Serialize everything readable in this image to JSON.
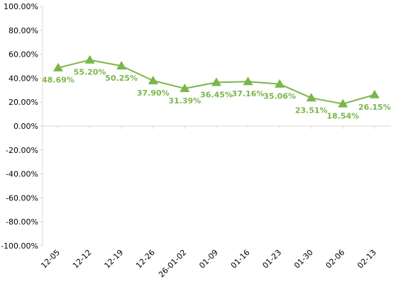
{
  "chart_data": {
    "type": "line",
    "categories": [
      "12-05",
      "12-12",
      "12-19",
      "12-26",
      "26-01-02",
      "01-09",
      "01-16",
      "01-23",
      "01-30",
      "02-06",
      "02-13"
    ],
    "series": [
      {
        "values": [
          48.69,
          55.2,
          50.25,
          37.9,
          31.39,
          36.45,
          37.16,
          35.06,
          23.51,
          18.54,
          26.15
        ],
        "labels": [
          "48.69%",
          "55.20%",
          "50.25%",
          "37.90%",
          "31.39%",
          "36.45%",
          "37.16%",
          "35.06%",
          "23.51%",
          "18.54%",
          "26.15%"
        ],
        "color": "#7ab648",
        "marker": "triangle"
      }
    ],
    "y_ticks": [
      "100.00%",
      "80.00%",
      "60.00%",
      "40.00%",
      "20.00%",
      "0.00%",
      "-20.00%",
      "-40.00%",
      "-60.00%",
      "-80.00%",
      "-100.00%"
    ],
    "ylim": [
      -100,
      100
    ],
    "grid": false,
    "legend": "none",
    "axis_color": "#d9d9d9",
    "label_color": "#7ab648",
    "tick_label_color": "#000000"
  }
}
